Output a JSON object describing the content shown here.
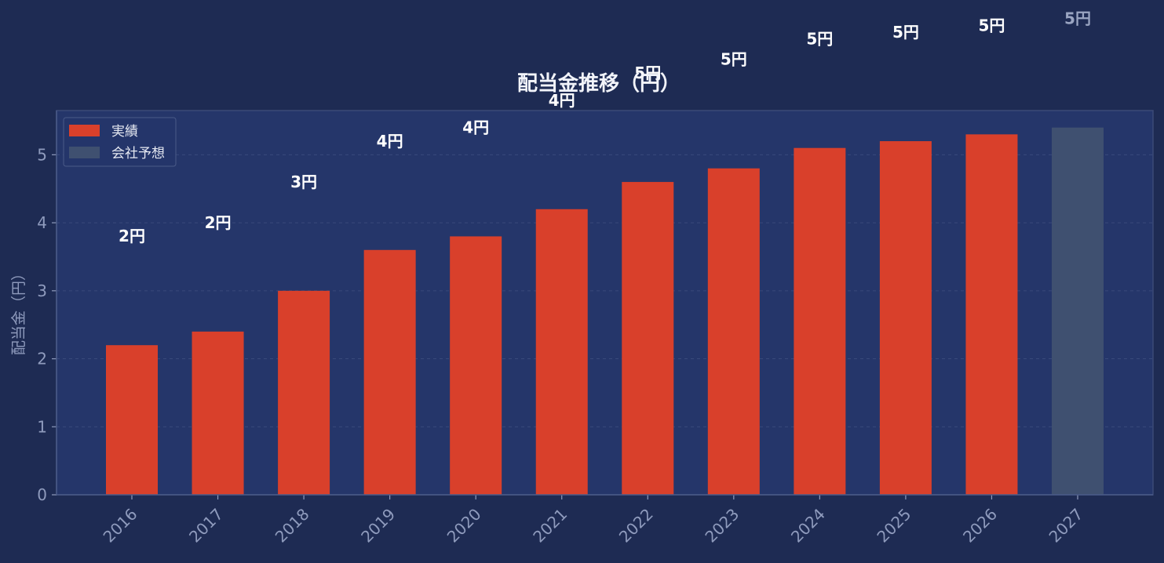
{
  "chart_data": {
    "type": "bar",
    "title": "配当金推移（円）",
    "xlabel": "",
    "ylabel": "配当金（円）",
    "categories": [
      "2016",
      "2017",
      "2018",
      "2019",
      "2020",
      "2021",
      "2022",
      "2023",
      "2024",
      "2025",
      "2026",
      "2027"
    ],
    "values": [
      2.2,
      2.4,
      3.0,
      3.6,
      3.8,
      4.2,
      4.6,
      4.8,
      5.1,
      5.2,
      5.3,
      5.4
    ],
    "kinds": [
      "actual",
      "actual",
      "actual",
      "actual",
      "actual",
      "actual",
      "actual",
      "actual",
      "actual",
      "actual",
      "actual",
      "forecast"
    ],
    "data_labels": [
      "2円",
      "2円",
      "3円",
      "4円",
      "4円",
      "4円",
      "5円",
      "5円",
      "5円",
      "5円",
      "5円",
      "5円"
    ],
    "ylim": [
      0,
      5.65
    ],
    "yticks": [
      0,
      1,
      2,
      3,
      4,
      5
    ],
    "grid": true,
    "legend": {
      "placement": "top-left",
      "items": [
        {
          "key": "actual",
          "label": "実績",
          "color": "#d9402b"
        },
        {
          "key": "forecast",
          "label": "会社予想",
          "color": "#3f5070"
        }
      ]
    },
    "colors": {
      "background": "#1e2b53",
      "plot_background": "#25366a",
      "actual": "#d9402b",
      "forecast": "#3f5070",
      "label_actual": "#ffffff",
      "label_forecast": "#9aa5c2",
      "axis_text": "#8f9bbd",
      "title": "#f2f4fa"
    }
  }
}
